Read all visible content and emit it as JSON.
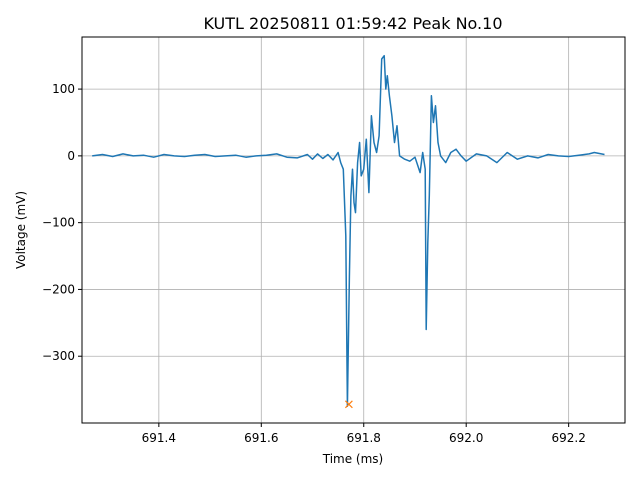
{
  "chart_data": {
    "type": "line",
    "title": "KUTL 20250811 01:59:42 Peak No.10",
    "xlabel": "Time (ms)",
    "ylabel": "Voltage (mV)",
    "xlim": [
      691.25,
      692.31
    ],
    "ylim": [
      -400,
      178
    ],
    "x_ticks": [
      691.4,
      691.6,
      691.8,
      692.0,
      692.2
    ],
    "x_tick_labels": [
      "691.4",
      "691.6",
      "691.8",
      "692.0",
      "692.2"
    ],
    "y_ticks": [
      -300,
      -200,
      -100,
      0,
      100
    ],
    "y_tick_labels": [
      "−300",
      "−200",
      "−100",
      "0",
      "100"
    ],
    "grid": true,
    "colors": {
      "series": "#1f77b4",
      "peak_marker": "#ff7f0e"
    },
    "series": [
      {
        "x": [
          691.27,
          691.29,
          691.31,
          691.33,
          691.35,
          691.37,
          691.39,
          691.41,
          691.43,
          691.45,
          691.47,
          691.49,
          691.51,
          691.53,
          691.55,
          691.57,
          691.59,
          691.61,
          691.63,
          691.65,
          691.67,
          691.69,
          691.7,
          691.71,
          691.72,
          691.73,
          691.74,
          691.75,
          691.755,
          691.76,
          691.765,
          691.768,
          691.772,
          691.775,
          691.778,
          691.781,
          691.784,
          691.788,
          691.792,
          691.795,
          691.8,
          691.805,
          691.81,
          691.815,
          691.82,
          691.825,
          691.83,
          691.835,
          691.84,
          691.843,
          691.846,
          691.85,
          691.855,
          691.86,
          691.865,
          691.87,
          691.88,
          691.89,
          691.9,
          691.91,
          691.915,
          691.92,
          691.922,
          691.925,
          691.928,
          691.932,
          691.936,
          691.94,
          691.945,
          691.95,
          691.96,
          691.97,
          691.98,
          691.99,
          692.0,
          692.02,
          692.04,
          692.06,
          692.08,
          692.1,
          692.12,
          692.14,
          692.16,
          692.18,
          692.2,
          692.22,
          692.24,
          692.25,
          692.27
        ],
        "y": [
          0,
          2,
          -1,
          3,
          0,
          1,
          -2,
          2,
          0,
          -1,
          1,
          2,
          -1,
          0,
          1,
          -2,
          0,
          1,
          3,
          -2,
          -3,
          2,
          -5,
          3,
          -4,
          2,
          -6,
          5,
          -10,
          -20,
          -120,
          -375,
          -180,
          -60,
          -20,
          -70,
          -85,
          -10,
          20,
          -30,
          -20,
          25,
          -55,
          60,
          20,
          5,
          30,
          145,
          150,
          100,
          120,
          90,
          60,
          20,
          45,
          0,
          -5,
          -8,
          -2,
          -25,
          5,
          -20,
          -260,
          -130,
          -60,
          90,
          50,
          75,
          20,
          0,
          -10,
          5,
          10,
          0,
          -8,
          3,
          0,
          -10,
          5,
          -5,
          0,
          -3,
          2,
          0,
          -1,
          1,
          3,
          5,
          2
        ]
      }
    ],
    "markers": [
      {
        "label": "peak",
        "symbol": "×",
        "x": 691.771,
        "y": -372
      }
    ]
  }
}
